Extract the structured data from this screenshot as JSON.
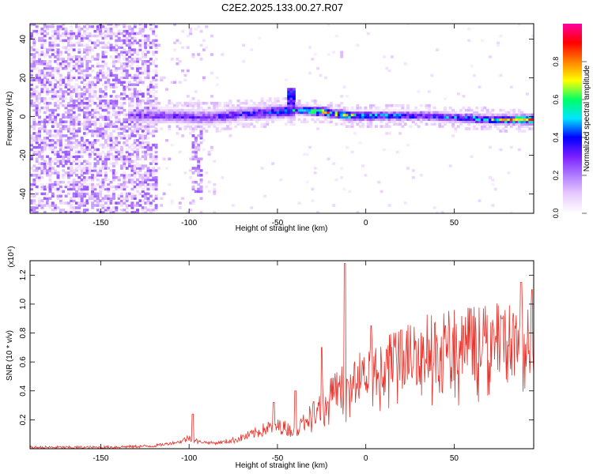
{
  "title": "C2E2.2025.133.00.27.R07",
  "chart_data": [
    {
      "type": "heatmap",
      "xlabel": "Height of straight line (km)",
      "ylabel": "Frequency (Hz)",
      "xlim": [
        -190,
        95
      ],
      "ylim": [
        -50,
        48
      ],
      "xticks": [
        -150,
        -100,
        -50,
        0,
        50
      ],
      "yticks": [
        -40,
        -20,
        0,
        20,
        40
      ],
      "colorbar": {
        "label": "Normalized spectral amplitude",
        "range": [
          0,
          1
        ],
        "ticks": [
          "0.0",
          "0.2",
          "0.4",
          "0.6",
          "0.8"
        ],
        "colors": [
          "#ffffff",
          "#e9ccff",
          "#b07cff",
          "#7a1fff",
          "#0000ff",
          "#00e5ff",
          "#00ff66",
          "#ffff00",
          "#ff8000",
          "#ff0000",
          "#ff00a0"
        ]
      },
      "ridge": [
        {
          "x": -130,
          "f": 0,
          "amp": 0.3
        },
        {
          "x": -110,
          "f": 0,
          "amp": 0.35
        },
        {
          "x": -90,
          "f": -1,
          "amp": 0.35
        },
        {
          "x": -70,
          "f": 1,
          "amp": 0.4
        },
        {
          "x": -50,
          "f": 2,
          "amp": 0.45
        },
        {
          "x": -40,
          "f": 3,
          "amp": 0.55
        },
        {
          "x": -25,
          "f": 2,
          "amp": 0.8
        },
        {
          "x": -10,
          "f": 0,
          "amp": 0.7
        },
        {
          "x": 10,
          "f": 0,
          "amp": 0.55
        },
        {
          "x": 30,
          "f": 0,
          "amp": 0.45
        },
        {
          "x": 50,
          "f": -1,
          "amp": 0.5
        },
        {
          "x": 70,
          "f": -2,
          "amp": 0.6
        },
        {
          "x": 90,
          "f": -2,
          "amp": 0.85
        }
      ]
    },
    {
      "type": "line",
      "xlabel": "Height of straight line (km)",
      "ylabel": "SNR (10 * v/v)",
      "yscale_label": "(x10⁴)",
      "xlim": [
        -190,
        95
      ],
      "ylim": [
        0,
        1.3
      ],
      "xticks": [
        -150,
        -100,
        -50,
        0,
        50
      ],
      "yticks": [
        0.2,
        0.4,
        0.6,
        0.8,
        1.0,
        1.2
      ],
      "ytick_labels": [
        "0.2",
        "0.4",
        "0.6",
        "0.8",
        "1.0",
        "1.2"
      ],
      "line_color": "#e8322a",
      "x": [
        -190,
        -150,
        -120,
        -105,
        -100,
        -95,
        -85,
        -75,
        -65,
        -55,
        -48,
        -40,
        -33,
        -25,
        -18,
        -12,
        -5,
        0,
        5,
        15,
        25,
        35,
        45,
        55,
        65,
        75,
        85,
        90,
        95
      ],
      "y": [
        0.01,
        0.01,
        0.02,
        0.05,
        0.08,
        0.05,
        0.04,
        0.06,
        0.1,
        0.15,
        0.16,
        0.12,
        0.22,
        0.34,
        0.4,
        0.45,
        0.5,
        0.52,
        0.56,
        0.62,
        0.68,
        0.72,
        0.74,
        0.75,
        0.76,
        0.77,
        0.78,
        0.8,
        0.82
      ],
      "spikes": [
        {
          "x": -98,
          "y": 0.24
        },
        {
          "x": -52,
          "y": 0.32
        },
        {
          "x": -40,
          "y": 0.4
        },
        {
          "x": -25,
          "y": 0.7
        },
        {
          "x": -12,
          "y": 1.28
        },
        {
          "x": 3,
          "y": 0.85
        },
        {
          "x": 20,
          "y": 0.82
        },
        {
          "x": 45,
          "y": 0.85
        },
        {
          "x": 77,
          "y": 0.9
        },
        {
          "x": 88,
          "y": 1.15
        },
        {
          "x": 94,
          "y": 1.1
        }
      ]
    }
  ]
}
